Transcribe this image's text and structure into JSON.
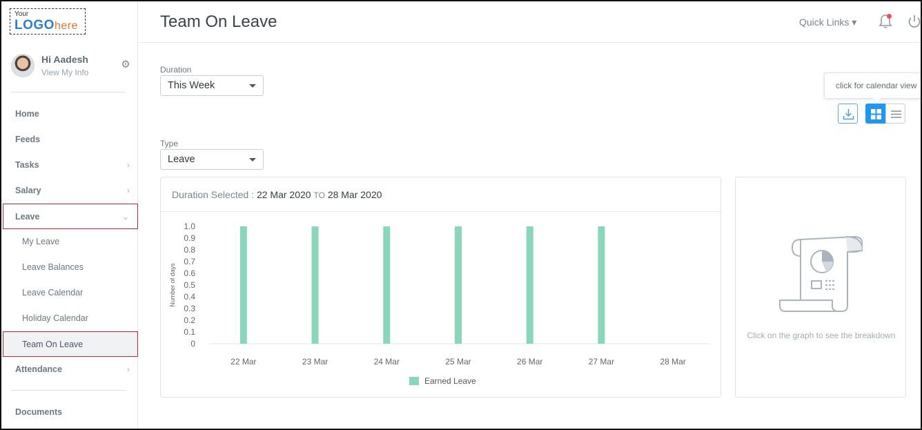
{
  "logo": {
    "small": "Your",
    "main": "LOGO",
    "accent": "here"
  },
  "user": {
    "greeting": "Hi Aadesh",
    "link": "View My Info"
  },
  "nav": [
    {
      "label": "Home",
      "sub": false,
      "chevron": ""
    },
    {
      "label": "Feeds",
      "sub": false,
      "chevron": ""
    },
    {
      "label": "Tasks",
      "sub": false,
      "chevron": "›"
    },
    {
      "label": "Salary",
      "sub": false,
      "chevron": "›"
    },
    {
      "label": "Leave",
      "sub": false,
      "chevron": "⌄",
      "boxed": true
    },
    {
      "label": "My Leave",
      "sub": true,
      "chevron": ""
    },
    {
      "label": "Leave Balances",
      "sub": true,
      "chevron": ""
    },
    {
      "label": "Leave Calendar",
      "sub": true,
      "chevron": ""
    },
    {
      "label": "Holiday Calendar",
      "sub": true,
      "chevron": ""
    },
    {
      "label": "Team On Leave",
      "sub": true,
      "chevron": "",
      "boxed": true
    },
    {
      "label": "Attendance",
      "sub": false,
      "chevron": "›"
    }
  ],
  "nav_bottom": {
    "label": "Documents"
  },
  "header": {
    "title": "Team On Leave",
    "quick_links": "Quick Links ▾"
  },
  "filters": {
    "duration_label": "Duration",
    "duration_value": "This Week",
    "type_label": "Type",
    "type_value": "Leave"
  },
  "tooltip": "click for calendar view",
  "chart_card": {
    "label": "Duration Selected :",
    "from": "22 Mar 2020",
    "to_word": "TO",
    "to": "28 Mar 2020"
  },
  "chart_data": {
    "type": "bar",
    "categories": [
      "22 Mar",
      "23 Mar",
      "24 Mar",
      "25 Mar",
      "26 Mar",
      "27 Mar",
      "28 Mar"
    ],
    "series": [
      {
        "name": "Earned Leave",
        "values": [
          1,
          1,
          1,
          1,
          1,
          1,
          0
        ],
        "color": "#8ad6bb"
      }
    ],
    "ylabel": "Number of days",
    "ylim": [
      0,
      1
    ],
    "yticks": [
      "0",
      "0.1",
      "0.2",
      "0.3",
      "0.4",
      "0.5",
      "0.6",
      "0.7",
      "0.8",
      "0.9",
      "1.0"
    ],
    "legend": "bottom"
  },
  "side_card": {
    "hint": "Click on the graph to see the breakdown"
  },
  "colors": {
    "accent": "#2196f3",
    "bar": "#8ad6bb",
    "active_border": "#c0252d"
  }
}
